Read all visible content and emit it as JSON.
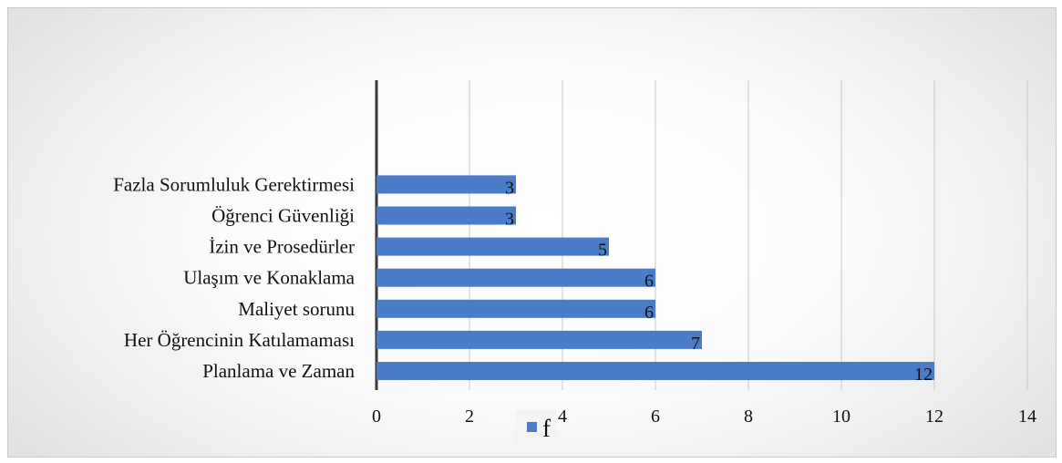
{
  "chart_data": {
    "type": "bar",
    "orientation": "horizontal",
    "categories": [
      "Planlama ve Zaman",
      "Her Öğrencinin Katılamaması",
      "Maliyet sorunu",
      "Ulaşım ve Konaklama",
      "İzin ve Prosedürler",
      "Öğrenci Güvenliği",
      "Fazla Sorumluluk Gerektirmesi"
    ],
    "series": [
      {
        "name": "f",
        "values": [
          12,
          7,
          6,
          6,
          5,
          3,
          3
        ],
        "color": "#4a7cc9"
      }
    ],
    "data_labels": [
      "12",
      "7",
      "6",
      "6",
      "5",
      "3",
      "3"
    ],
    "xlim": [
      0,
      14
    ],
    "xticks": [
      0,
      2,
      4,
      6,
      8,
      10,
      12,
      14
    ],
    "xtick_labels": [
      "0",
      "2",
      "4",
      "6",
      "8",
      "10",
      "12",
      "14"
    ],
    "grid": "vertical",
    "legend": {
      "position": "bottom",
      "label": "f"
    },
    "title": "",
    "xlabel": "",
    "ylabel": ""
  }
}
